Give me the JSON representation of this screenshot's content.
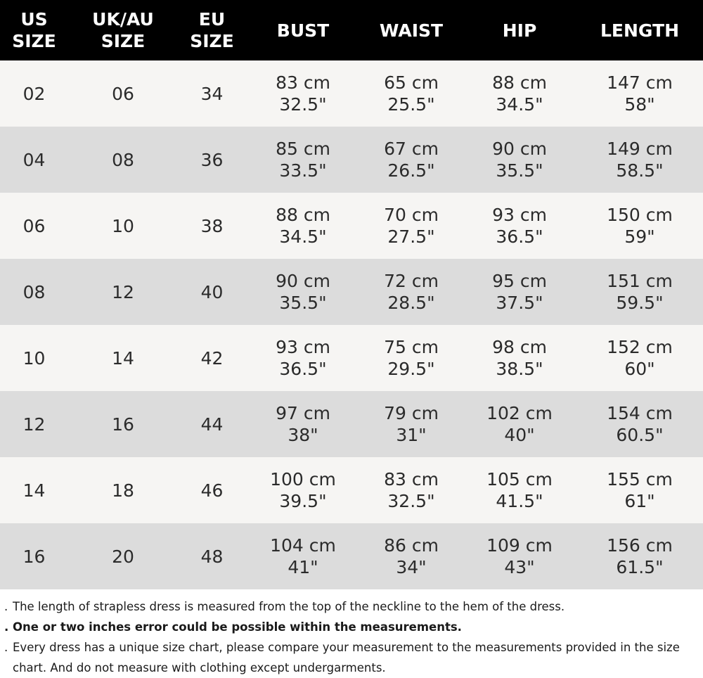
{
  "table": {
    "headers": [
      "US\nSIZE",
      "UK/AU\nSIZE",
      "EU\nSIZE",
      "BUST",
      "WAIST",
      "HIP",
      "LENGTH"
    ],
    "rows": [
      {
        "us": "02",
        "uk": "06",
        "eu": "34",
        "bust": [
          "83 cm",
          "32.5\""
        ],
        "waist": [
          "65 cm",
          "25.5\""
        ],
        "hip": [
          "88 cm",
          "34.5\""
        ],
        "length": [
          "147 cm",
          "58\""
        ]
      },
      {
        "us": "04",
        "uk": "08",
        "eu": "36",
        "bust": [
          "85 cm",
          "33.5\""
        ],
        "waist": [
          "67 cm",
          "26.5\""
        ],
        "hip": [
          "90 cm",
          "35.5\""
        ],
        "length": [
          "149 cm",
          "58.5\""
        ]
      },
      {
        "us": "06",
        "uk": "10",
        "eu": "38",
        "bust": [
          "88 cm",
          "34.5\""
        ],
        "waist": [
          "70 cm",
          "27.5\""
        ],
        "hip": [
          "93 cm",
          "36.5\""
        ],
        "length": [
          "150 cm",
          "59\""
        ]
      },
      {
        "us": "08",
        "uk": "12",
        "eu": "40",
        "bust": [
          "90 cm",
          "35.5\""
        ],
        "waist": [
          "72 cm",
          "28.5\""
        ],
        "hip": [
          "95 cm",
          "37.5\""
        ],
        "length": [
          "151 cm",
          "59.5\""
        ]
      },
      {
        "us": "10",
        "uk": "14",
        "eu": "42",
        "bust": [
          "93 cm",
          "36.5\""
        ],
        "waist": [
          "75 cm",
          "29.5\""
        ],
        "hip": [
          "98 cm",
          "38.5\""
        ],
        "length": [
          "152 cm",
          "60\""
        ]
      },
      {
        "us": "12",
        "uk": "16",
        "eu": "44",
        "bust": [
          "97 cm",
          "38\""
        ],
        "waist": [
          "79 cm",
          "31\""
        ],
        "hip": [
          "102 cm",
          "40\""
        ],
        "length": [
          "154 cm",
          "60.5\""
        ]
      },
      {
        "us": "14",
        "uk": "18",
        "eu": "46",
        "bust": [
          "100 cm",
          "39.5\""
        ],
        "waist": [
          "83 cm",
          "32.5\""
        ],
        "hip": [
          "105 cm",
          "41.5\""
        ],
        "length": [
          "155 cm",
          "61\""
        ]
      },
      {
        "us": "16",
        "uk": "20",
        "eu": "48",
        "bust": [
          "104 cm",
          "41\""
        ],
        "waist": [
          "86 cm",
          "34\""
        ],
        "hip": [
          "109 cm",
          "43\""
        ],
        "length": [
          "156 cm",
          "61.5\""
        ]
      }
    ]
  },
  "notes": [
    {
      "bullet": ".",
      "text": "The length of strapless dress is measured from the top of the neckline to the hem of the dress.",
      "bold": false
    },
    {
      "bullet": ".",
      "text": "One or two inches error could be possible within the measurements.",
      "bold": true
    },
    {
      "bullet": ".",
      "text": "Every dress has a unique size chart, please compare your measurement to the measurements provided in the size chart. And do not measure with clothing except undergarments.",
      "bold": false
    }
  ],
  "colors": {
    "header_bg": "#000000",
    "header_text": "#ffffff",
    "row_light": "#f6f5f3",
    "row_dark": "#dcdcdc"
  }
}
